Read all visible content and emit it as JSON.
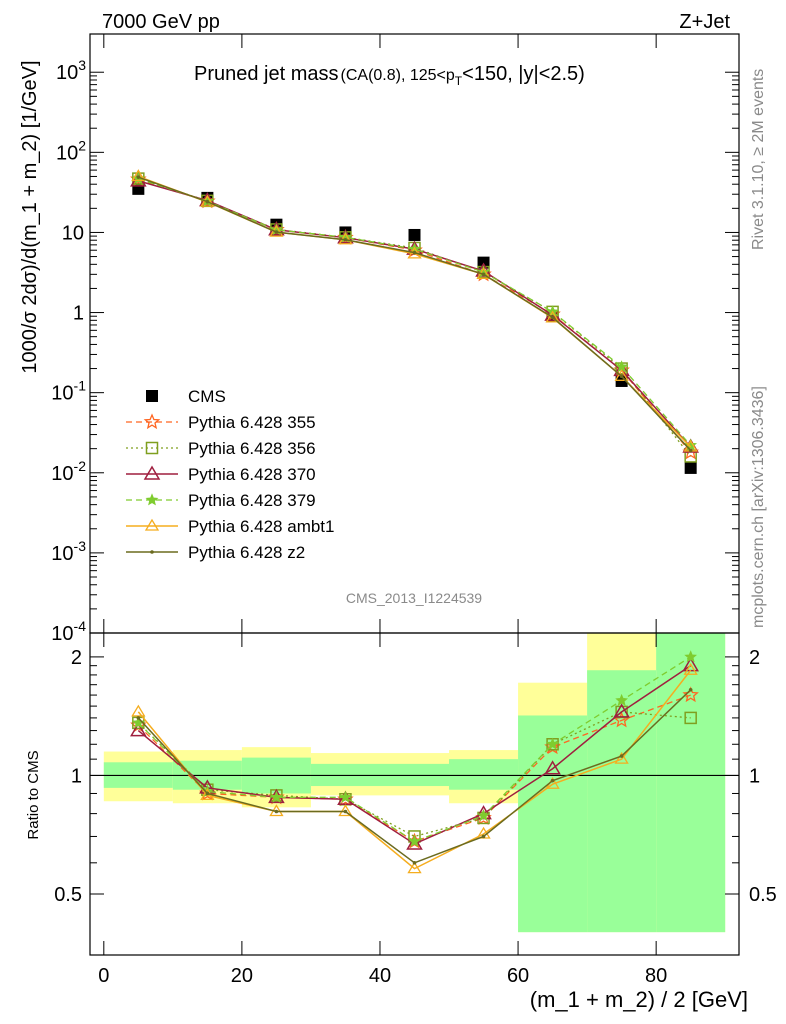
{
  "header": {
    "left": "7000 GeV pp",
    "right": "Z+Jet"
  },
  "side_labels": {
    "rivet": "Rivet 3.1.10, ≥ 2M events",
    "mcplots": "mcplots.cern.ch [arXiv:1306.3436]"
  },
  "watermark": "CMS_2013_I1224539",
  "colors": {
    "data": "#000000",
    "p355": "#ff6622",
    "p356": "#7f9f1f",
    "p370": "#9f1f3f",
    "p379": "#7fcc2f",
    "ambt1": "#f5ad1f",
    "z2": "#6b6b1f",
    "band_green": "#99ff99",
    "band_yellow": "#ffff99"
  },
  "chart_data": [
    {
      "type": "line",
      "panel": "main",
      "title_main": "Pruned jet mass",
      "title_sub": "(CA(0.8), 125<p_T<150, |y|<2.5)",
      "ylabel": "1000/σ 2dσ)/d(m_1 + m_2) [1/GeV]",
      "y_scale": "log",
      "ylim": [
        0.0001,
        3000
      ],
      "xlim": [
        -2,
        92
      ],
      "y_ticks": [
        "10^-4",
        "10^-3",
        "10^-2",
        "10^-1",
        "1",
        "10",
        "10^2",
        "10^3"
      ],
      "x": [
        5,
        15,
        25,
        35,
        45,
        55,
        65,
        75,
        85
      ],
      "legend_position": "left-middle",
      "series": [
        {
          "name": "CMS",
          "key": "data",
          "values": [
            35,
            27,
            12.5,
            10,
            9.3,
            4.2,
            0.9,
            0.14,
            0.0115
          ]
        },
        {
          "name": "Pythia 6.428 355",
          "key": "p355",
          "values": [
            46,
            24.5,
            10.8,
            8.6,
            6.0,
            3.0,
            0.95,
            0.19,
            0.018
          ]
        },
        {
          "name": "Pythia 6.428 356",
          "key": "p356",
          "values": [
            47,
            24.8,
            10.9,
            8.7,
            6.4,
            3.2,
            1.02,
            0.2,
            0.016
          ]
        },
        {
          "name": "Pythia 6.428 370",
          "key": "p370",
          "values": [
            44,
            25,
            10.8,
            8.6,
            6.2,
            3.3,
            0.93,
            0.19,
            0.021
          ]
        },
        {
          "name": "Pythia 6.428 379",
          "key": "p379",
          "values": [
            47,
            24.5,
            10.8,
            8.7,
            6.2,
            3.2,
            1.02,
            0.21,
            0.022
          ]
        },
        {
          "name": "Pythia 6.428 ambt1",
          "key": "ambt1",
          "values": [
            50,
            24,
            10.1,
            8.1,
            5.4,
            3.0,
            0.86,
            0.16,
            0.021
          ]
        },
        {
          "name": "Pythia 6.428 z2",
          "key": "z2",
          "values": [
            49,
            24.2,
            10.1,
            8.1,
            5.6,
            3.0,
            0.87,
            0.16,
            0.019
          ]
        }
      ]
    },
    {
      "type": "line",
      "panel": "ratio",
      "ylabel": "Ratio to CMS",
      "xlabel": "(m_1 + m_2) / 2 [GeV]",
      "ylim": [
        0.35,
        2.3
      ],
      "xlim": [
        -2,
        92
      ],
      "y_ticks": [
        0.5,
        1,
        2
      ],
      "x_ticks": [
        0,
        20,
        40,
        60,
        80
      ],
      "reference_line": 1,
      "bands": [
        {
          "x0": 0,
          "x1": 10,
          "green": [
            0.93,
            1.08
          ],
          "yellow": [
            0.86,
            1.15
          ]
        },
        {
          "x0": 10,
          "x1": 20,
          "green": [
            0.92,
            1.09
          ],
          "yellow": [
            0.85,
            1.16
          ]
        },
        {
          "x0": 20,
          "x1": 30,
          "green": [
            0.9,
            1.11
          ],
          "yellow": [
            0.83,
            1.18
          ]
        },
        {
          "x0": 30,
          "x1": 50,
          "green": [
            0.94,
            1.07
          ],
          "yellow": [
            0.89,
            1.14
          ]
        },
        {
          "x0": 50,
          "x1": 60,
          "green": [
            0.92,
            1.1
          ],
          "yellow": [
            0.85,
            1.16
          ]
        },
        {
          "x0": 60,
          "x1": 70,
          "green": [
            0.4,
            1.42
          ],
          "yellow": [
            0.4,
            1.72
          ]
        },
        {
          "x0": 70,
          "x1": 80,
          "green": [
            0.4,
            1.85
          ],
          "yellow": [
            0.4,
            2.3
          ]
        },
        {
          "x0": 80,
          "x1": 90,
          "green": [
            0.4,
            2.3
          ],
          "yellow": [
            0.4,
            2.3
          ]
        }
      ],
      "x": [
        5,
        15,
        25,
        35,
        45,
        55,
        65,
        75,
        85
      ],
      "series": [
        {
          "name": "Pythia 6.428 355",
          "key": "p355",
          "values": [
            1.34,
            0.9,
            0.88,
            0.87,
            0.68,
            0.78,
            1.18,
            1.38,
            1.6
          ]
        },
        {
          "name": "Pythia 6.428 356",
          "key": "p356",
          "values": [
            1.36,
            0.92,
            0.89,
            0.87,
            0.7,
            0.78,
            1.2,
            1.45,
            1.4
          ]
        },
        {
          "name": "Pythia 6.428 370",
          "key": "p370",
          "values": [
            1.3,
            0.93,
            0.88,
            0.87,
            0.67,
            0.8,
            1.04,
            1.45,
            1.9
          ]
        },
        {
          "name": "Pythia 6.428 379",
          "key": "p379",
          "values": [
            1.36,
            0.91,
            0.88,
            0.88,
            0.68,
            0.79,
            1.2,
            1.55,
            2.0
          ]
        },
        {
          "name": "Pythia 6.428 ambt1",
          "key": "ambt1",
          "values": [
            1.45,
            0.89,
            0.81,
            0.81,
            0.58,
            0.71,
            0.95,
            1.1,
            1.85
          ]
        },
        {
          "name": "Pythia 6.428 z2",
          "key": "z2",
          "values": [
            1.4,
            0.9,
            0.81,
            0.81,
            0.6,
            0.7,
            0.97,
            1.12,
            1.65
          ]
        }
      ]
    }
  ]
}
